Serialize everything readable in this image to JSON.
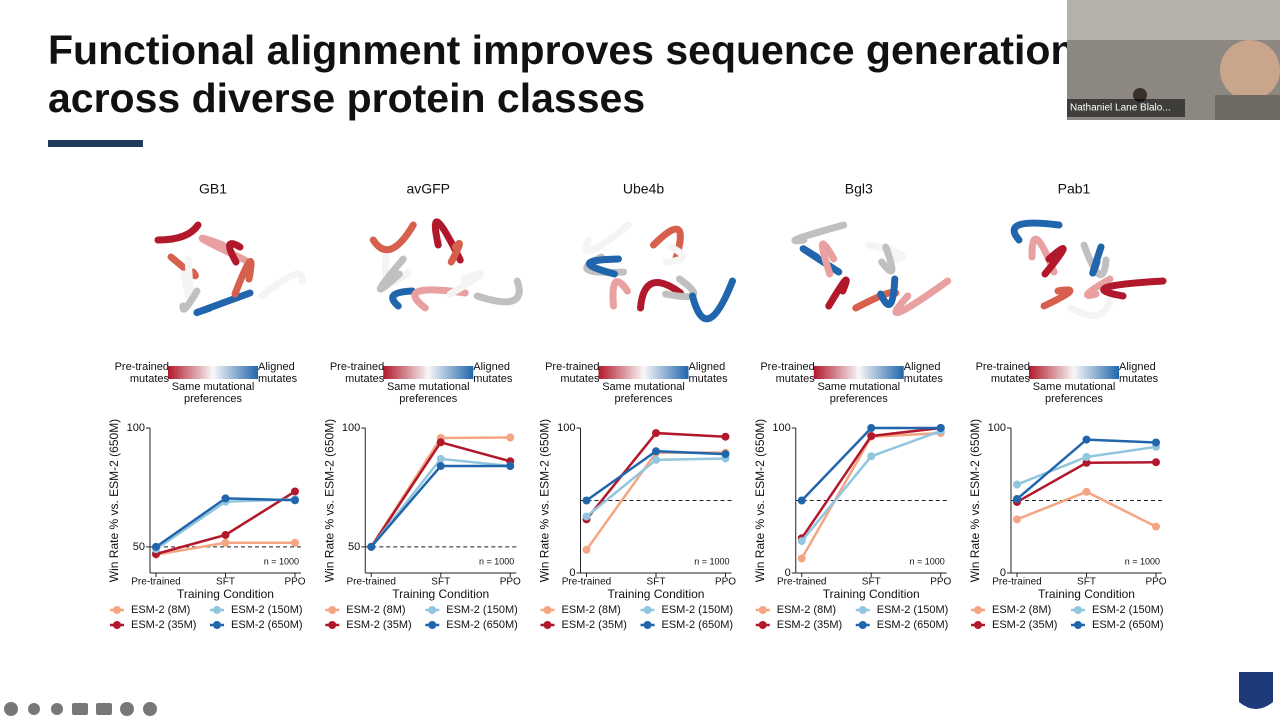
{
  "slide": {
    "title_lines": [
      "Functional alignment improves sequence generation",
      "across diverse protein classes"
    ]
  },
  "video": {
    "name": "Nathaniel Lane Blalo..."
  },
  "chart_data": [
    {
      "type": "line",
      "title": "GB1",
      "colorbar": {
        "low": "Pre-trained mutates",
        "mid": "Same mutational preferences",
        "high": "Aligned mutates"
      },
      "categories": [
        "Pre-trained",
        "SFT",
        "PPO"
      ],
      "xlabel": "Training Condition",
      "ylabel": "Win Rate % vs. ESM-2 (650M)",
      "ylim": [
        39,
        100
      ],
      "yticks": [
        50,
        100
      ],
      "reference_line": 50,
      "annotation": "n = 1000",
      "series": [
        {
          "name": "ESM-2 (8M)",
          "color": "#f4a582",
          "values": [
            46.7,
            51.7,
            51.7
          ]
        },
        {
          "name": "ESM-2 (35M)",
          "color": "#b2182b",
          "values": [
            47,
            55,
            73.3
          ]
        },
        {
          "name": "ESM-2 (150M)",
          "color": "#92c5de",
          "values": [
            49,
            69,
            70
          ]
        },
        {
          "name": "ESM-2 (650M)",
          "color": "#2166ac",
          "values": [
            50,
            70.4,
            69.6
          ]
        }
      ]
    },
    {
      "type": "line",
      "title": "avGFP",
      "colorbar": {
        "low": "Pre-trained mutates",
        "mid": "Same mutational preferences",
        "high": "Aligned mutates"
      },
      "categories": [
        "Pre-trained",
        "SFT",
        "PPO"
      ],
      "xlabel": "Training Condition",
      "ylabel": "Win Rate % vs. ESM-2 (650M)",
      "ylim": [
        39,
        100
      ],
      "yticks": [
        50,
        100
      ],
      "reference_line": 50,
      "annotation": "n = 1000",
      "series": [
        {
          "name": "ESM-2 (8M)",
          "color": "#f4a582",
          "values": [
            50,
            95.8,
            96
          ]
        },
        {
          "name": "ESM-2 (35M)",
          "color": "#b2182b",
          "values": [
            50,
            94,
            86
          ]
        },
        {
          "name": "ESM-2 (150M)",
          "color": "#92c5de",
          "values": [
            50,
            87,
            84
          ]
        },
        {
          "name": "ESM-2 (650M)",
          "color": "#2166ac",
          "values": [
            50,
            84,
            84
          ]
        }
      ]
    },
    {
      "type": "line",
      "title": "Ube4b",
      "colorbar": {
        "low": "Pre-trained mutates",
        "mid": "Same mutational preferences",
        "high": "Aligned mutates"
      },
      "categories": [
        "Pre-trained",
        "SFT",
        "PPO"
      ],
      "xlabel": "Training Condition",
      "ylabel": "Win Rate % vs. ESM-2 (650M)",
      "ylim": [
        0,
        100
      ],
      "yticks": [
        0,
        100
      ],
      "reference_line": 50,
      "annotation": "n = 1000",
      "series": [
        {
          "name": "ESM-2 (8M)",
          "color": "#f4a582",
          "values": [
            16,
            83,
            83
          ]
        },
        {
          "name": "ESM-2 (35M)",
          "color": "#b2182b",
          "values": [
            37,
            96.5,
            94
          ]
        },
        {
          "name": "ESM-2 (150M)",
          "color": "#92c5de",
          "values": [
            39,
            78,
            79
          ]
        },
        {
          "name": "ESM-2 (650M)",
          "color": "#2166ac",
          "values": [
            50,
            84,
            82
          ]
        }
      ]
    },
    {
      "type": "line",
      "title": "Bgl3",
      "colorbar": {
        "low": "Pre-trained mutates",
        "mid": "Same mutational preferences",
        "high": "Aligned mutates"
      },
      "categories": [
        "Pre-trained",
        "SFT",
        "PPO"
      ],
      "xlabel": "Training Condition",
      "ylabel": "Win Rate % vs. ESM-2 (650M)",
      "ylim": [
        0,
        100
      ],
      "yticks": [
        0,
        100
      ],
      "reference_line": 50,
      "annotation": "n = 1000",
      "series": [
        {
          "name": "ESM-2 (8M)",
          "color": "#f4a582",
          "values": [
            10,
            94,
            96.5
          ]
        },
        {
          "name": "ESM-2 (35M)",
          "color": "#b2182b",
          "values": [
            24,
            94.5,
            100
          ]
        },
        {
          "name": "ESM-2 (150M)",
          "color": "#92c5de",
          "values": [
            22,
            80.5,
            98
          ]
        },
        {
          "name": "ESM-2 (650M)",
          "color": "#2166ac",
          "values": [
            50,
            100,
            100
          ]
        }
      ]
    },
    {
      "type": "line",
      "title": "Pab1",
      "colorbar": {
        "low": "Pre-trained mutates",
        "mid": "Same mutational preferences",
        "high": "Aligned mutates"
      },
      "categories": [
        "Pre-trained",
        "SFT",
        "PPO"
      ],
      "xlabel": "Training Condition",
      "ylabel": "Win Rate % vs. ESM-2 (650M)",
      "ylim": [
        0,
        100
      ],
      "yticks": [
        0,
        100
      ],
      "reference_line": 50,
      "annotation": "n = 1000",
      "series": [
        {
          "name": "ESM-2 (8M)",
          "color": "#f4a582",
          "values": [
            37,
            56,
            32
          ]
        },
        {
          "name": "ESM-2 (35M)",
          "color": "#b2182b",
          "values": [
            49,
            76,
            76.4
          ]
        },
        {
          "name": "ESM-2 (150M)",
          "color": "#92c5de",
          "values": [
            61,
            80,
            87
          ]
        },
        {
          "name": "ESM-2 (650M)",
          "color": "#2166ac",
          "values": [
            51,
            92,
            90
          ]
        }
      ]
    }
  ]
}
